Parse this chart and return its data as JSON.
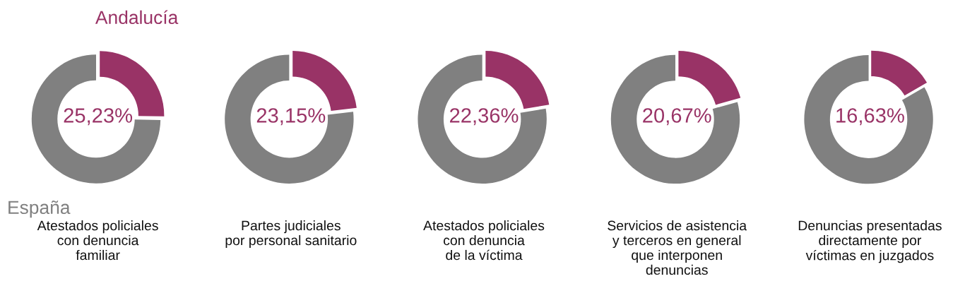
{
  "chart_data": [
    {
      "type": "donut",
      "title": "Atestados policiales\ncon denuncia\nfamiliar",
      "categories": [
        "Andalucía",
        "España"
      ],
      "values": [
        25.23,
        74.77
      ],
      "colors": [
        "#993366",
        "#808080"
      ],
      "value_labels": [
        "25,23%",
        null
      ],
      "legend": false
    },
    {
      "type": "donut",
      "title": "Partes judiciales\npor personal sanitario",
      "categories": [
        null,
        null
      ],
      "values": [
        23.15,
        76.85
      ],
      "colors": [
        "#993366",
        "#808080"
      ],
      "value_labels": [
        "23,15%",
        null
      ],
      "legend": false
    },
    {
      "type": "donut",
      "title": "Atestados policiales\ncon denuncia\nde la víctima",
      "categories": [
        null,
        null
      ],
      "values": [
        22.36,
        77.64
      ],
      "colors": [
        "#993366",
        "#808080"
      ],
      "value_labels": [
        "22,36%",
        null
      ],
      "legend": false
    },
    {
      "type": "donut",
      "title": "Servicios de asistencia\ny terceros en general\nque interponen\ndenuncias",
      "categories": [
        null,
        null
      ],
      "values": [
        20.67,
        79.33
      ],
      "colors": [
        "#993366",
        "#808080"
      ],
      "value_labels": [
        "20,67%",
        null
      ],
      "legend": false
    },
    {
      "type": "donut",
      "title": "Denuncias presentadas\ndirectamente por\nvíctimas en juzgados",
      "categories": [
        null,
        null
      ],
      "values": [
        16.63,
        83.37
      ],
      "colors": [
        "#993366",
        "#808080"
      ],
      "value_labels": [
        "16,63%",
        null
      ],
      "legend": false
    }
  ]
}
